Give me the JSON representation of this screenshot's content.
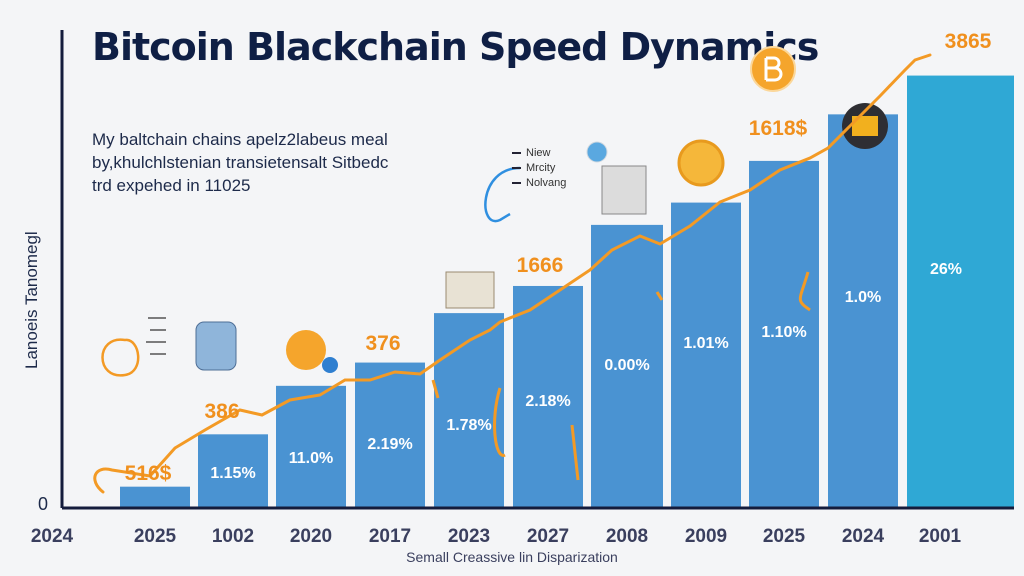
{
  "chart_data": {
    "type": "bar",
    "title": "Bitcoin Blackchain Speed Dynamics",
    "subtitle": [
      "My baltchain chains apelz2labeus meal",
      "by,khulchlstenian transietensalt Sitbedc",
      "trd expehed in 11025"
    ],
    "xlabel": "Semall Creassive lin Disparization",
    "ylabel": "Lanoeis Tanomegl",
    "y_ticks": [
      "0"
    ],
    "ylim": [
      0,
      460
    ],
    "grid": false,
    "categories": [
      "2024",
      "2025",
      "1002",
      "2020",
      "2017",
      "2023",
      "2027",
      "2008",
      "2009",
      "2025",
      "2024",
      "2001"
    ],
    "values": [
      0,
      22,
      76,
      126,
      150,
      201,
      229,
      292,
      315,
      358,
      406,
      446
    ],
    "bar_labels": [
      "",
      "",
      "1.15%",
      "11.0%",
      "2.19%",
      "1.78%",
      "2.18%",
      "0.00%",
      "1.01%",
      "1.10%",
      "1.0%",
      "26%"
    ],
    "trend_labels": [
      "516$",
      "386",
      "376",
      "1666",
      "1618$",
      "3865"
    ],
    "legend": [
      "Niew",
      "Mrcity",
      "Nolvang"
    ],
    "legend_placement": "top-center",
    "colors": {
      "bar": "#4a93d2",
      "bar_last": "#2fa8d5",
      "trend": "#f39a25",
      "axis": "#141c3c"
    }
  }
}
